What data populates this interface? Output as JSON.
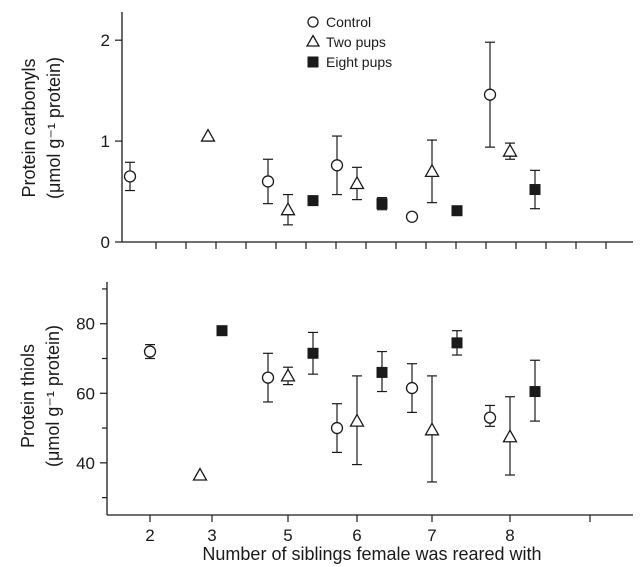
{
  "chart_data": [
    {
      "type": "scatter",
      "title": "",
      "ylabel_line1": "Protein carbonyls",
      "ylabel_line2": "(μmol g⁻¹ protein)",
      "xlabel": "",
      "ylim": [
        0,
        2.2
      ],
      "yticks": [
        0,
        1,
        2
      ],
      "categories": [
        "2",
        "3",
        "5",
        "6",
        "7",
        "8"
      ],
      "legend": [
        "Control",
        "Two pups",
        "Eight pups"
      ],
      "legend_position": "top-center",
      "series": [
        {
          "name": "Control",
          "marker": "circle-open",
          "x": [
            "2",
            "5",
            "6",
            "7",
            "8"
          ],
          "values": [
            0.65,
            0.6,
            0.76,
            0.25,
            1.46
          ],
          "err_low": [
            0.51,
            0.38,
            0.47,
            0.22,
            0.94
          ],
          "err_high": [
            0.79,
            0.82,
            1.05,
            0.28,
            1.98
          ]
        },
        {
          "name": "Two pups",
          "marker": "triangle-open",
          "x": [
            "3",
            "5",
            "6",
            "7",
            "8"
          ],
          "values": [
            1.05,
            0.32,
            0.58,
            0.7,
            0.9
          ],
          "err_low": [
            1.05,
            0.17,
            0.42,
            0.39,
            0.82
          ],
          "err_high": [
            1.05,
            0.47,
            0.74,
            1.01,
            0.98
          ]
        },
        {
          "name": "Eight pups",
          "marker": "square-filled",
          "x": [
            "5",
            "6",
            "7",
            "8"
          ],
          "values": [
            0.41,
            0.38,
            0.31,
            0.52
          ],
          "err_low": [
            0.41,
            0.32,
            0.31,
            0.33
          ],
          "err_high": [
            0.41,
            0.44,
            0.31,
            0.71
          ]
        }
      ]
    },
    {
      "type": "scatter",
      "title": "",
      "ylabel_line1": "Protein thiols",
      "ylabel_line2": "(μmol g⁻¹ protein)",
      "xlabel": "Number of siblings female was reared with",
      "ylim": [
        25,
        92
      ],
      "yticks": [
        40,
        60,
        80
      ],
      "categories": [
        "2",
        "3",
        "5",
        "6",
        "7",
        "8"
      ],
      "series": [
        {
          "name": "Control",
          "marker": "circle-open",
          "x": [
            "2",
            "5",
            "6",
            "7",
            "8"
          ],
          "values": [
            72,
            64.5,
            50,
            61.5,
            53
          ],
          "err_low": [
            70,
            57.5,
            43,
            54.5,
            50.5
          ],
          "err_high": [
            74,
            71.5,
            57,
            68.5,
            56.5
          ]
        },
        {
          "name": "Two pups",
          "marker": "triangle-open",
          "x": [
            "3",
            "5",
            "6",
            "7",
            "8"
          ],
          "values": [
            36.5,
            65,
            52,
            49.5,
            47.5
          ],
          "err_low": [
            36.5,
            62.5,
            39.5,
            34.5,
            36.5
          ],
          "err_high": [
            36.5,
            67.5,
            65,
            65,
            59
          ]
        },
        {
          "name": "Eight pups",
          "marker": "square-filled",
          "x": [
            "3",
            "5",
            "6",
            "7",
            "8"
          ],
          "values": [
            78,
            71.5,
            66,
            74.5,
            60.5
          ],
          "err_low": [
            78,
            65.5,
            60.5,
            71,
            52
          ],
          "err_high": [
            78,
            77.5,
            72,
            78,
            69.5
          ]
        }
      ]
    }
  ]
}
